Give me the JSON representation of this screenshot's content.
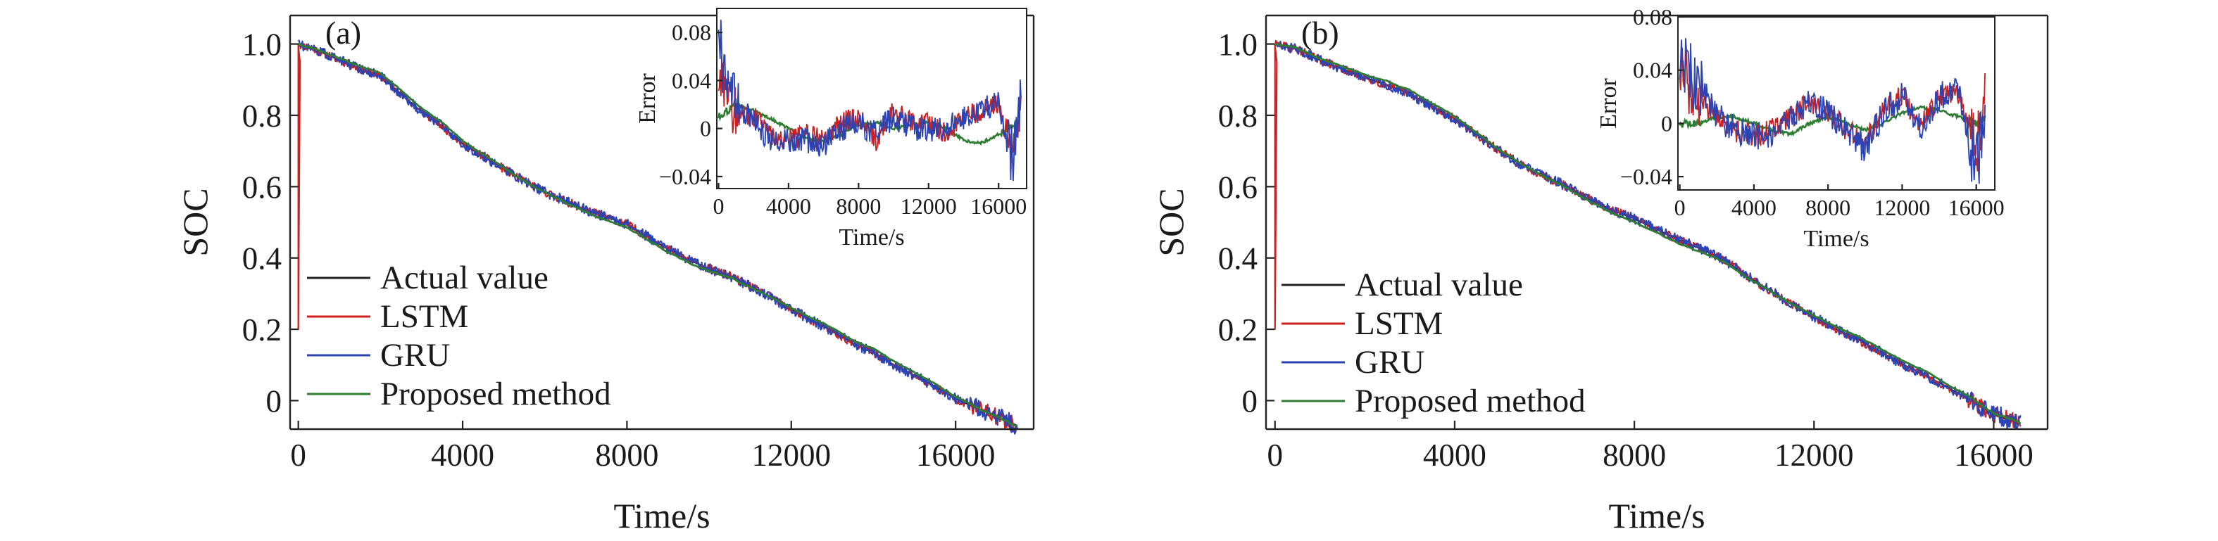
{
  "chart_data": [
    {
      "type": "line",
      "panel_label": "(a)",
      "xlabel": "Time/s",
      "ylabel": "SOC",
      "xlim": [
        -200,
        17900
      ],
      "ylim": [
        -0.08,
        1.08
      ],
      "xticks": [
        0,
        4000,
        8000,
        12000,
        16000
      ],
      "xtick_labels": [
        "0",
        "4000",
        "8000",
        "12000",
        "16000"
      ],
      "yticks": [
        0,
        0.2,
        0.4,
        0.6,
        0.8,
        1.0
      ],
      "ytick_labels": [
        "0",
        "0.2",
        "0.4",
        "0.6",
        "0.8",
        "1.0"
      ],
      "legend_position": "lower-left",
      "x_end": 17500,
      "soc_points": [
        [
          0,
          1.0
        ],
        [
          400,
          0.985
        ],
        [
          1000,
          0.955
        ],
        [
          1500,
          0.93
        ],
        [
          2000,
          0.91
        ],
        [
          2500,
          0.86
        ],
        [
          3000,
          0.81
        ],
        [
          3500,
          0.77
        ],
        [
          4000,
          0.72
        ],
        [
          4500,
          0.685
        ],
        [
          5000,
          0.65
        ],
        [
          5500,
          0.615
        ],
        [
          6000,
          0.585
        ],
        [
          6500,
          0.56
        ],
        [
          7000,
          0.535
        ],
        [
          7500,
          0.515
        ],
        [
          8000,
          0.495
        ],
        [
          8500,
          0.46
        ],
        [
          9000,
          0.425
        ],
        [
          9500,
          0.395
        ],
        [
          10000,
          0.37
        ],
        [
          10500,
          0.35
        ],
        [
          11000,
          0.32
        ],
        [
          11500,
          0.29
        ],
        [
          12000,
          0.255
        ],
        [
          12500,
          0.225
        ],
        [
          13000,
          0.195
        ],
        [
          13500,
          0.16
        ],
        [
          14000,
          0.135
        ],
        [
          14500,
          0.1
        ],
        [
          15000,
          0.07
        ],
        [
          15500,
          0.04
        ],
        [
          16000,
          0.005
        ],
        [
          16500,
          -0.02
        ],
        [
          17000,
          -0.045
        ],
        [
          17500,
          -0.07
        ]
      ],
      "series": [
        {
          "name": "Actual value",
          "color": "#222222"
        },
        {
          "name": "LSTM",
          "color": "#cc2020"
        },
        {
          "name": "GRU",
          "color": "#2b44b5"
        },
        {
          "name": "Proposed method",
          "color": "#2f7d32"
        }
      ],
      "inset": {
        "xlabel": "Time/s",
        "ylabel": "Error",
        "xlim": [
          -100,
          17600
        ],
        "ylim": [
          -0.05,
          0.1
        ],
        "xticks": [
          0,
          4000,
          8000,
          12000,
          16000
        ],
        "xtick_labels": [
          "0",
          "4000",
          "8000",
          "12000",
          "16000"
        ],
        "yticks": [
          -0.04,
          0,
          0.04,
          0.08
        ],
        "ytick_labels": [
          "−0.04",
          "0",
          "0.04",
          "0.08"
        ],
        "error_points": {
          "LSTM": [
            [
              0,
              0.05
            ],
            [
              500,
              0.02
            ],
            [
              1000,
              0.015
            ],
            [
              2000,
              0.01
            ],
            [
              3000,
              -0.005
            ],
            [
              4000,
              -0.01
            ],
            [
              5000,
              -0.005
            ],
            [
              6000,
              -0.01
            ],
            [
              7000,
              0.005
            ],
            [
              8000,
              0.01
            ],
            [
              9000,
              -0.01
            ],
            [
              10000,
              0.015
            ],
            [
              11000,
              0.005
            ],
            [
              12000,
              0.005
            ],
            [
              13000,
              -0.005
            ],
            [
              14000,
              0.01
            ],
            [
              15000,
              0.015
            ],
            [
              16000,
              0.02
            ],
            [
              16800,
              -0.03
            ],
            [
              17300,
              0.01
            ]
          ],
          "GRU": [
            [
              0,
              0.08
            ],
            [
              500,
              0.03
            ],
            [
              1000,
              0.02
            ],
            [
              2000,
              0.005
            ],
            [
              3000,
              -0.01
            ],
            [
              4000,
              -0.01
            ],
            [
              5000,
              -0.01
            ],
            [
              6000,
              -0.015
            ],
            [
              7000,
              0.0
            ],
            [
              8000,
              0.005
            ],
            [
              9000,
              -0.005
            ],
            [
              10000,
              0.01
            ],
            [
              11000,
              0.0
            ],
            [
              12000,
              0.0
            ],
            [
              13000,
              0.0
            ],
            [
              14000,
              0.01
            ],
            [
              15000,
              0.015
            ],
            [
              16000,
              0.02
            ],
            [
              16800,
              -0.02
            ],
            [
              17300,
              0.02
            ]
          ],
          "Proposed method": [
            [
              0,
              0.01
            ],
            [
              1000,
              0.02
            ],
            [
              2000,
              0.015
            ],
            [
              3000,
              0.008
            ],
            [
              4000,
              0.0
            ],
            [
              5000,
              -0.008
            ],
            [
              6000,
              -0.01
            ],
            [
              7000,
              -0.005
            ],
            [
              8000,
              0.003
            ],
            [
              9000,
              0.005
            ],
            [
              10000,
              0.0
            ],
            [
              11000,
              0.003
            ],
            [
              12000,
              0.005
            ],
            [
              13000,
              0.0
            ],
            [
              14000,
              -0.01
            ],
            [
              15000,
              -0.012
            ],
            [
              16000,
              -0.005
            ],
            [
              17000,
              0.005
            ]
          ]
        }
      }
    },
    {
      "type": "line",
      "panel_label": "(b)",
      "xlabel": "Time/s",
      "ylabel": "SOC",
      "xlim": [
        -200,
        17200
      ],
      "ylim": [
        -0.08,
        1.08
      ],
      "xticks": [
        0,
        4000,
        8000,
        12000,
        16000
      ],
      "xtick_labels": [
        "0",
        "4000",
        "8000",
        "12000",
        "16000"
      ],
      "yticks": [
        0,
        0.2,
        0.4,
        0.6,
        0.8,
        1.0
      ],
      "ytick_labels": [
        "0",
        "0.2",
        "0.4",
        "0.6",
        "0.8",
        "1.0"
      ],
      "legend_position": "lower-left",
      "x_end": 16600,
      "soc_points": [
        [
          0,
          1.0
        ],
        [
          500,
          0.985
        ],
        [
          1000,
          0.955
        ],
        [
          1500,
          0.93
        ],
        [
          2000,
          0.905
        ],
        [
          2500,
          0.885
        ],
        [
          3000,
          0.86
        ],
        [
          3500,
          0.825
        ],
        [
          4000,
          0.79
        ],
        [
          4500,
          0.745
        ],
        [
          5000,
          0.7
        ],
        [
          5500,
          0.66
        ],
        [
          6000,
          0.63
        ],
        [
          6500,
          0.6
        ],
        [
          7000,
          0.565
        ],
        [
          7500,
          0.535
        ],
        [
          8000,
          0.51
        ],
        [
          8500,
          0.48
        ],
        [
          9000,
          0.45
        ],
        [
          9500,
          0.425
        ],
        [
          10000,
          0.395
        ],
        [
          10500,
          0.35
        ],
        [
          11000,
          0.31
        ],
        [
          11500,
          0.27
        ],
        [
          12000,
          0.235
        ],
        [
          12500,
          0.2
        ],
        [
          13000,
          0.17
        ],
        [
          13500,
          0.135
        ],
        [
          14000,
          0.1
        ],
        [
          14500,
          0.07
        ],
        [
          15000,
          0.035
        ],
        [
          15500,
          0.0
        ],
        [
          16000,
          -0.04
        ],
        [
          16600,
          -0.065
        ]
      ],
      "series": [
        {
          "name": "Actual value",
          "color": "#222222"
        },
        {
          "name": "LSTM",
          "color": "#cc2020"
        },
        {
          "name": "GRU",
          "color": "#2b44b5"
        },
        {
          "name": "Proposed method",
          "color": "#2f7d32"
        }
      ],
      "inset": {
        "xlabel": "Time/s",
        "ylabel": "Error",
        "xlim": [
          -100,
          17000
        ],
        "ylim": [
          -0.05,
          0.08
        ],
        "xticks": [
          0,
          4000,
          8000,
          12000,
          16000
        ],
        "xtick_labels": [
          "0",
          "4000",
          "8000",
          "12000",
          "16000"
        ],
        "yticks": [
          -0.04,
          0,
          0.04,
          0.08
        ],
        "ytick_labels": [
          "−0.04",
          "0",
          "0.04",
          "0.08"
        ],
        "error_points": {
          "LSTM": [
            [
              0,
              0.04
            ],
            [
              500,
              0.03
            ],
            [
              1000,
              0.02
            ],
            [
              2000,
              0.005
            ],
            [
              3000,
              -0.005
            ],
            [
              4000,
              -0.01
            ],
            [
              5000,
              -0.005
            ],
            [
              6000,
              0.005
            ],
            [
              7000,
              0.015
            ],
            [
              8000,
              0.01
            ],
            [
              9000,
              -0.005
            ],
            [
              10000,
              -0.015
            ],
            [
              11000,
              0.01
            ],
            [
              12000,
              0.02
            ],
            [
              13000,
              0.0
            ],
            [
              14000,
              0.02
            ],
            [
              15000,
              0.025
            ],
            [
              16000,
              -0.02
            ],
            [
              16500,
              0.02
            ]
          ],
          "GRU": [
            [
              0,
              0.06
            ],
            [
              500,
              0.04
            ],
            [
              1000,
              0.03
            ],
            [
              2000,
              0.005
            ],
            [
              3000,
              -0.005
            ],
            [
              4000,
              -0.01
            ],
            [
              5000,
              -0.008
            ],
            [
              6000,
              0.005
            ],
            [
              7000,
              0.015
            ],
            [
              8000,
              0.01
            ],
            [
              9000,
              -0.005
            ],
            [
              10000,
              -0.02
            ],
            [
              11000,
              0.01
            ],
            [
              12000,
              0.02
            ],
            [
              13000,
              -0.005
            ],
            [
              14000,
              0.02
            ],
            [
              15000,
              0.025
            ],
            [
              16000,
              -0.03
            ],
            [
              16500,
              0.01
            ]
          ],
          "Proposed method": [
            [
              0,
              0.0
            ],
            [
              1000,
              0.0
            ],
            [
              2000,
              0.005
            ],
            [
              3000,
              0.005
            ],
            [
              4000,
              0.0
            ],
            [
              5000,
              -0.005
            ],
            [
              6000,
              -0.008
            ],
            [
              7000,
              0.0
            ],
            [
              8000,
              0.005
            ],
            [
              9000,
              0.0
            ],
            [
              10000,
              -0.005
            ],
            [
              11000,
              0.0
            ],
            [
              12000,
              0.008
            ],
            [
              13000,
              0.012
            ],
            [
              14000,
              0.01
            ],
            [
              15000,
              0.005
            ],
            [
              16000,
              0.0
            ],
            [
              16500,
              0.003
            ]
          ]
        }
      }
    }
  ]
}
